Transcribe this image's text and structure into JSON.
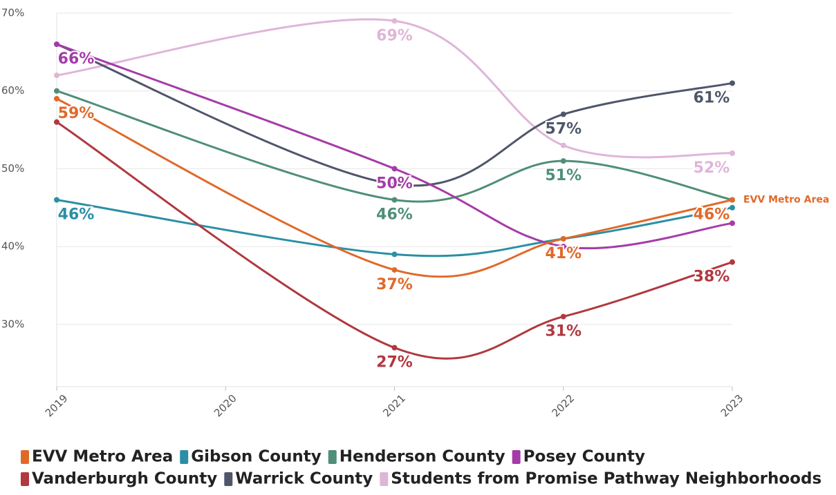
{
  "chart_data": {
    "type": "line",
    "x": [
      2019,
      2021,
      2022,
      2023
    ],
    "xlim": [
      2019,
      2023
    ],
    "xticks": [
      2019,
      2020,
      2021,
      2022,
      2023
    ],
    "ylim": [
      22,
      70
    ],
    "yticks": [
      {
        "value": 30,
        "label": "30%"
      },
      {
        "value": 40,
        "label": "40%"
      },
      {
        "value": 50,
        "label": "50%"
      },
      {
        "value": 60,
        "label": "60%"
      },
      {
        "value": 70,
        "label": "70%"
      }
    ],
    "grid": true,
    "series": [
      {
        "name": "EVV Metro Area",
        "color": "#e0692a",
        "values": [
          59,
          37,
          41,
          46
        ],
        "value_labels": [
          "59%",
          "37%",
          "41%",
          "46%"
        ]
      },
      {
        "name": "Gibson County",
        "color": "#2a8fa5",
        "values": [
          46,
          39,
          41,
          45
        ],
        "value_labels": [
          "46%",
          null,
          null,
          null
        ]
      },
      {
        "name": "Henderson County",
        "color": "#4f8e77",
        "values": [
          60,
          46,
          51,
          46
        ],
        "value_labels": [
          null,
          "46%",
          "51%",
          null
        ]
      },
      {
        "name": "Posey County",
        "color": "#a53ba8",
        "values": [
          66,
          50,
          40,
          43
        ],
        "value_labels": [
          "66%",
          "50%",
          null,
          null
        ]
      },
      {
        "name": "Vanderburgh County",
        "color": "#b0383f",
        "values": [
          56,
          27,
          31,
          38
        ],
        "value_labels": [
          null,
          "27%",
          "31%",
          "38%"
        ]
      },
      {
        "name": "Warrick County",
        "color": "#4f566a",
        "values": [
          66,
          48,
          57,
          61
        ],
        "value_labels": [
          null,
          null,
          "57%",
          "61%"
        ]
      },
      {
        "name": "Students from Promise Pathway Neighborhoods",
        "color": "#dfb5d8",
        "values": [
          62,
          69,
          53,
          52
        ],
        "value_labels": [
          null,
          "69%",
          null,
          "52%"
        ]
      }
    ],
    "end_label_series": 0
  }
}
